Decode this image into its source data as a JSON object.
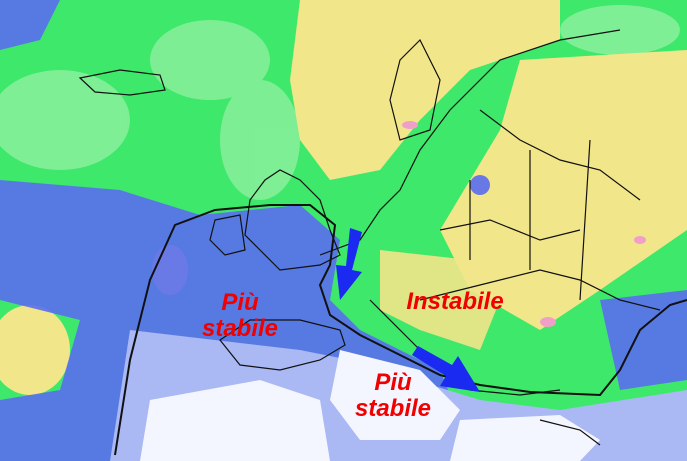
{
  "map": {
    "colors": {
      "base": "#3ee86a",
      "light_green": "#8ef0a0",
      "yellow": "#f2e68a",
      "blue": "#5a6ef0",
      "light_blue": "#aab8f4",
      "white": "#f4f6ff",
      "pink": "#f0a0c8",
      "front_line": "#111111",
      "arrow": "#1a2af0",
      "label": "#f00000"
    },
    "labels": {
      "west": [
        "Più",
        "stabile"
      ],
      "center": "Instabile",
      "south": [
        "Più",
        "stabile"
      ]
    },
    "arrows": [
      "arrow-down-france",
      "arrow-southeast-balkans"
    ]
  }
}
